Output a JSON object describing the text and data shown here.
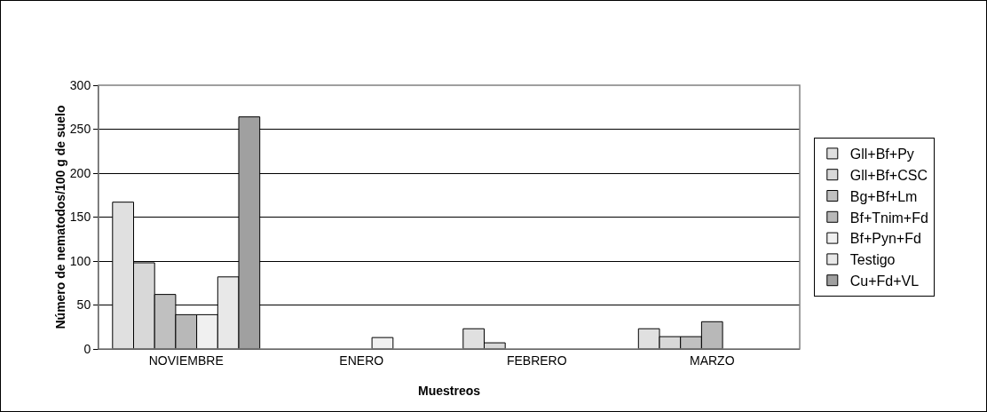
{
  "chart_data": {
    "type": "bar",
    "xlabel": "Muestreos",
    "ylabel": "Número de nematodos/100 g de suelo",
    "categories": [
      "NOVIEMBRE",
      "ENERO",
      "FEBRERO",
      "MARZO"
    ],
    "series": [
      {
        "name": "Gll+Bf+Py",
        "color": "#e0e0e0",
        "values": [
          167,
          null,
          23,
          23
        ]
      },
      {
        "name": "Gll+Bf+CSC",
        "color": "#d8d8d8",
        "values": [
          98,
          null,
          7,
          14
        ]
      },
      {
        "name": "Bg+Bf+Lm",
        "color": "#c0c0c0",
        "values": [
          62,
          null,
          null,
          14
        ]
      },
      {
        "name": "Bf+Tnim+Fd",
        "color": "#b8b8b8",
        "values": [
          39,
          null,
          null,
          31
        ]
      },
      {
        "name": "Bf+Pyn+Fd",
        "color": "#f0f0f0",
        "values": [
          39,
          13,
          null,
          null
        ]
      },
      {
        "name": "Testigo",
        "color": "#e8e8e8",
        "values": [
          82,
          null,
          null,
          null
        ]
      },
      {
        "name": "Cu+Fd+VL",
        "color": "#a0a0a0",
        "values": [
          264,
          null,
          null,
          null
        ]
      }
    ],
    "ylim": [
      0,
      300
    ],
    "yticks": [
      0,
      50,
      100,
      150,
      200,
      250,
      300
    ],
    "grid": "y",
    "legend": "right"
  }
}
